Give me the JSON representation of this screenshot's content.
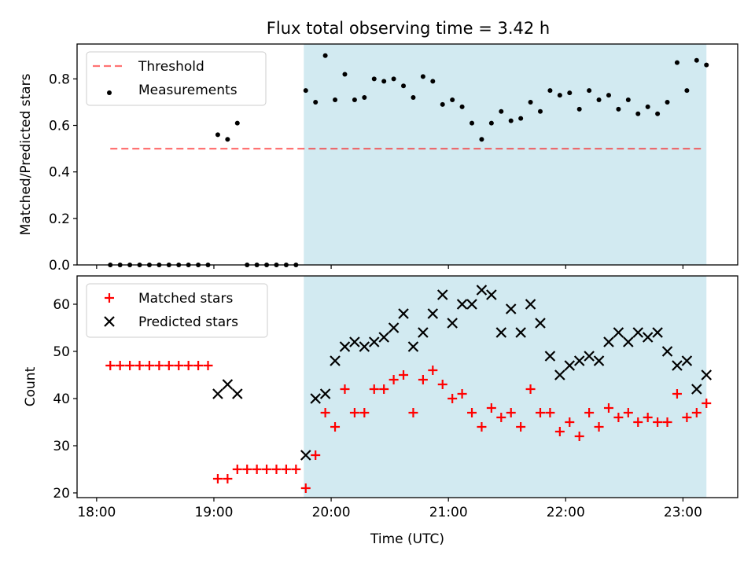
{
  "title": "Flux total observing time = 3.42 h",
  "chart_data": [
    {
      "type": "scatter",
      "title": "Flux total observing time = 3.42 h",
      "xlabel": "",
      "ylabel": "Matched/Predicted stars",
      "ylim": [
        0,
        0.95
      ],
      "yticks": [
        "0.0",
        "0.2",
        "0.4",
        "0.6",
        "0.8"
      ],
      "xlim": [
        "17:50",
        "23:28"
      ],
      "legend_position": "upper-left",
      "shaded_region": {
        "x": [
          "19:46",
          "23:12"
        ],
        "color": "#add8e6"
      },
      "threshold": {
        "name": "Threshold",
        "y": 0.5,
        "x": [
          "18:07",
          "23:11"
        ],
        "color": "#ff0000",
        "style": "dashed"
      },
      "series": [
        {
          "name": "Measurements",
          "marker": "dot",
          "color": "#000000",
          "x": [
            "18:07",
            "18:12",
            "18:17",
            "18:22",
            "18:27",
            "18:32",
            "18:37",
            "18:42",
            "18:47",
            "18:52",
            "18:57",
            "19:02",
            "19:07",
            "19:12",
            "19:17",
            "19:22",
            "19:27",
            "19:32",
            "19:37",
            "19:42",
            "19:47",
            "19:52",
            "19:57",
            "20:02",
            "20:07",
            "20:12",
            "20:17",
            "20:22",
            "20:27",
            "20:32",
            "20:37",
            "20:42",
            "20:47",
            "20:52",
            "20:57",
            "21:02",
            "21:07",
            "21:12",
            "21:17",
            "21:22",
            "21:27",
            "21:32",
            "21:37",
            "21:42",
            "21:47",
            "21:52",
            "21:57",
            "22:02",
            "22:07",
            "22:12",
            "22:17",
            "22:22",
            "22:27",
            "22:32",
            "22:37",
            "22:42",
            "22:47",
            "22:52",
            "22:57",
            "23:02",
            "23:07",
            "23:12"
          ],
          "y": [
            0,
            0,
            0,
            0,
            0,
            0,
            0,
            0,
            0,
            0,
            0,
            0.56,
            0.54,
            0.61,
            0,
            0,
            0,
            0,
            0,
            0,
            0.75,
            0.7,
            0.9,
            0.71,
            0.82,
            0.71,
            0.72,
            0.8,
            0.79,
            0.8,
            0.77,
            0.72,
            0.81,
            0.79,
            0.69,
            0.71,
            0.68,
            0.61,
            0.54,
            0.61,
            0.66,
            0.62,
            0.63,
            0.7,
            0.66,
            0.75,
            0.73,
            0.74,
            0.67,
            0.75,
            0.71,
            0.73,
            0.67,
            0.71,
            0.65,
            0.68,
            0.65,
            0.7,
            0.87,
            0.75,
            0.88,
            0.86
          ]
        }
      ]
    },
    {
      "type": "scatter",
      "xlabel": "Time (UTC)",
      "ylabel": "Count",
      "ylim": [
        19,
        66
      ],
      "yticks": [
        "20",
        "30",
        "40",
        "50",
        "60"
      ],
      "xlim": [
        "17:50",
        "23:28"
      ],
      "xticks": [
        "18:00",
        "19:00",
        "20:00",
        "21:00",
        "22:00",
        "23:00"
      ],
      "legend_position": "upper-left",
      "shaded_region": {
        "x": [
          "19:46",
          "23:12"
        ],
        "color": "#add8e6"
      },
      "series": [
        {
          "name": "Matched stars",
          "marker": "plus",
          "color": "#ff0000",
          "x": [
            "18:07",
            "18:12",
            "18:17",
            "18:22",
            "18:27",
            "18:32",
            "18:37",
            "18:42",
            "18:47",
            "18:52",
            "18:57",
            "19:02",
            "19:07",
            "19:12",
            "19:17",
            "19:22",
            "19:27",
            "19:32",
            "19:37",
            "19:42",
            "19:47",
            "19:52",
            "19:57",
            "20:02",
            "20:07",
            "20:12",
            "20:17",
            "20:22",
            "20:27",
            "20:32",
            "20:37",
            "20:42",
            "20:47",
            "20:52",
            "20:57",
            "21:02",
            "21:07",
            "21:12",
            "21:17",
            "21:22",
            "21:27",
            "21:32",
            "21:37",
            "21:42",
            "21:47",
            "21:52",
            "21:57",
            "22:02",
            "22:07",
            "22:12",
            "22:17",
            "22:22",
            "22:27",
            "22:32",
            "22:37",
            "22:42",
            "22:47",
            "22:52",
            "22:57",
            "23:02",
            "23:07",
            "23:12"
          ],
          "y": [
            47,
            47,
            47,
            47,
            47,
            47,
            47,
            47,
            47,
            47,
            47,
            23,
            23,
            25,
            25,
            25,
            25,
            25,
            25,
            25,
            21,
            28,
            37,
            34,
            42,
            37,
            37,
            42,
            42,
            44,
            45,
            37,
            44,
            46,
            43,
            40,
            41,
            37,
            34,
            38,
            36,
            37,
            34,
            42,
            37,
            37,
            33,
            35,
            32,
            37,
            34,
            38,
            36,
            37,
            35,
            36,
            35,
            35,
            41,
            36,
            37,
            39
          ]
        },
        {
          "name": "Predicted stars",
          "marker": "x",
          "color": "#000000",
          "x": [
            "19:02",
            "19:07",
            "19:12",
            "19:47",
            "19:52",
            "19:57",
            "20:02",
            "20:07",
            "20:12",
            "20:17",
            "20:22",
            "20:27",
            "20:32",
            "20:37",
            "20:42",
            "20:47",
            "20:52",
            "20:57",
            "21:02",
            "21:07",
            "21:12",
            "21:17",
            "21:22",
            "21:27",
            "21:32",
            "21:37",
            "21:42",
            "21:47",
            "21:52",
            "21:57",
            "22:02",
            "22:07",
            "22:12",
            "22:17",
            "22:22",
            "22:27",
            "22:32",
            "22:37",
            "22:42",
            "22:47",
            "22:52",
            "22:57",
            "23:02",
            "23:07",
            "23:12"
          ],
          "y": [
            41,
            43,
            41,
            28,
            40,
            41,
            48,
            51,
            52,
            51,
            52,
            53,
            55,
            58,
            51,
            54,
            58,
            62,
            56,
            60,
            60,
            63,
            62,
            54,
            59,
            54,
            60,
            56,
            49,
            45,
            47,
            48,
            49,
            48,
            52,
            54,
            52,
            54,
            53,
            54,
            50,
            47,
            48,
            42,
            45
          ]
        }
      ]
    }
  ]
}
